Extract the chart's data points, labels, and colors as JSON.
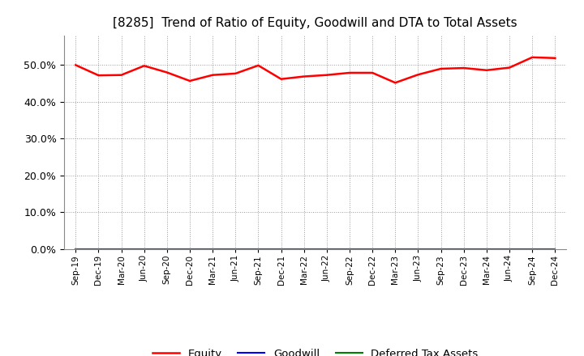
{
  "title": "[8285]  Trend of Ratio of Equity, Goodwill and DTA to Total Assets",
  "x_labels": [
    "Sep-19",
    "Dec-19",
    "Mar-20",
    "Jun-20",
    "Sep-20",
    "Dec-20",
    "Mar-21",
    "Jun-21",
    "Sep-21",
    "Dec-21",
    "Mar-22",
    "Jun-22",
    "Sep-22",
    "Dec-22",
    "Mar-23",
    "Jun-23",
    "Sep-23",
    "Dec-23",
    "Mar-24",
    "Jun-24",
    "Sep-24",
    "Dec-24"
  ],
  "equity": [
    0.5,
    0.472,
    0.473,
    0.498,
    0.48,
    0.457,
    0.473,
    0.477,
    0.499,
    0.462,
    0.469,
    0.473,
    0.479,
    0.479,
    0.452,
    0.474,
    0.49,
    0.492,
    0.486,
    0.493,
    0.521,
    0.519
  ],
  "goodwill": [
    0.0,
    0.0,
    0.0,
    0.0,
    0.0,
    0.0,
    0.0,
    0.0,
    0.0,
    0.0,
    0.0,
    0.0,
    0.0,
    0.0,
    0.0,
    0.0,
    0.0,
    0.0,
    0.0,
    0.0,
    0.0,
    0.0
  ],
  "dta": [
    0.0,
    0.0,
    0.0,
    0.0,
    0.0,
    0.0,
    0.0,
    0.0,
    0.0,
    0.0,
    0.0,
    0.0,
    0.0,
    0.0,
    0.0,
    0.0,
    0.0,
    0.0,
    0.0,
    0.0,
    0.0,
    0.0
  ],
  "equity_color": "#FF0000",
  "goodwill_color": "#0000FF",
  "dta_color": "#008000",
  "ylim": [
    0.0,
    0.58
  ],
  "yticks": [
    0.0,
    0.1,
    0.2,
    0.3,
    0.4,
    0.5
  ],
  "background_color": "#FFFFFF",
  "plot_bg_color": "#FFFFFF",
  "grid_color": "#999999",
  "title_fontsize": 11,
  "legend_labels": [
    "Equity",
    "Goodwill",
    "Deferred Tax Assets"
  ]
}
